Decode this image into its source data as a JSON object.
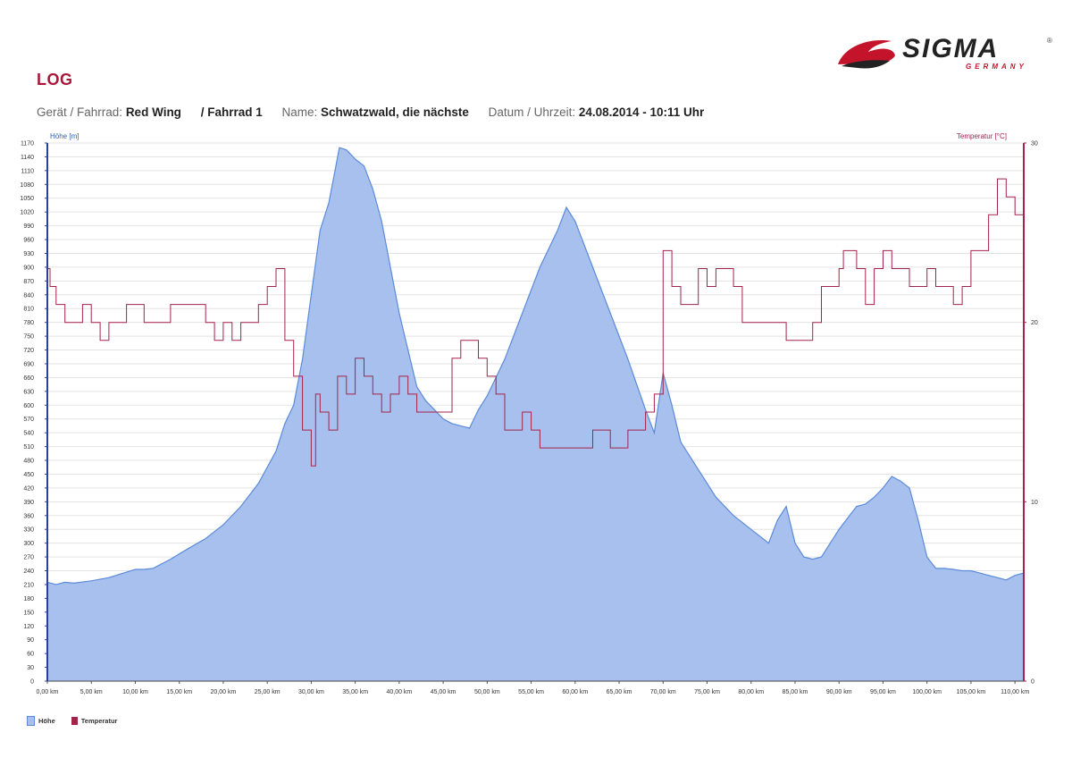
{
  "logo": {
    "text": "SIGMA",
    "sub": "GERMANY",
    "mark": "®"
  },
  "title": "LOG",
  "header": {
    "device_label": "Gerät / Fahrrad:",
    "device_value": "Red Wing",
    "bike_value": "/ Fahrrad 1",
    "name_label": "Name:",
    "name_value": "Schwatzwald, die nächste",
    "date_label": "Datum / Uhrzeit:",
    "date_value": "24.08.2014 - 10:11 Uhr"
  },
  "colors": {
    "hoehe": "#5b8bd8",
    "hoehe_fill": "#a8c0ee",
    "temperatur": "#a3234a",
    "brand": "#a8183a"
  },
  "chart_data": {
    "type": "area",
    "ylabel": "Höhe [m]",
    "y2label": "Temperatur [°C]",
    "xlim": [
      0,
      111
    ],
    "ylim": [
      0,
      1170
    ],
    "y2lim": [
      0,
      30
    ],
    "xticks": [
      "0,00 km",
      "5,00 km",
      "10,00 km",
      "15,00 km",
      "20,00 km",
      "25,00 km",
      "30,00 km",
      "35,00 km",
      "40,00 km",
      "45,00 km",
      "50,00 km",
      "55,00 km",
      "60,00 km",
      "65,00 km",
      "70,00 km",
      "75,00 km",
      "80,00 km",
      "85,00 km",
      "90,00 km",
      "95,00 km",
      "100,00 km",
      "105,00 km",
      "110,00 km"
    ],
    "yticks": [
      "0",
      "30",
      "60",
      "90",
      "120",
      "150",
      "180",
      "210",
      "240",
      "270",
      "300",
      "330",
      "360",
      "390",
      "420",
      "450",
      "480",
      "510",
      "540",
      "570",
      "600",
      "630",
      "660",
      "690",
      "720",
      "750",
      "780",
      "810",
      "840",
      "870",
      "900",
      "930",
      "960",
      "990",
      "1020",
      "1050",
      "1080",
      "1110",
      "1140",
      "1170"
    ],
    "y2ticks": [
      "0",
      "10",
      "20",
      "30"
    ],
    "legend": [
      {
        "name": "Höhe"
      },
      {
        "name": "Temperatur"
      }
    ],
    "series": [
      {
        "name": "Höhe",
        "axis": "left",
        "points": [
          [
            0,
            215
          ],
          [
            1,
            210
          ],
          [
            2,
            215
          ],
          [
            3,
            213
          ],
          [
            5,
            218
          ],
          [
            7,
            225
          ],
          [
            9,
            237
          ],
          [
            10,
            243
          ],
          [
            11,
            243
          ],
          [
            12,
            245
          ],
          [
            14,
            265
          ],
          [
            16,
            288
          ],
          [
            18,
            310
          ],
          [
            20,
            340
          ],
          [
            22,
            380
          ],
          [
            24,
            430
          ],
          [
            26,
            500
          ],
          [
            27,
            560
          ],
          [
            28,
            600
          ],
          [
            29,
            700
          ],
          [
            30,
            840
          ],
          [
            31,
            980
          ],
          [
            32,
            1040
          ],
          [
            32.8,
            1120
          ],
          [
            33.2,
            1160
          ],
          [
            34,
            1155
          ],
          [
            35,
            1135
          ],
          [
            36,
            1120
          ],
          [
            37,
            1070
          ],
          [
            38,
            1000
          ],
          [
            39,
            900
          ],
          [
            40,
            800
          ],
          [
            41,
            720
          ],
          [
            42,
            640
          ],
          [
            43,
            610
          ],
          [
            44,
            590
          ],
          [
            45,
            570
          ],
          [
            46,
            560
          ],
          [
            47,
            555
          ],
          [
            48,
            550
          ],
          [
            49,
            590
          ],
          [
            50,
            620
          ],
          [
            52,
            700
          ],
          [
            54,
            800
          ],
          [
            56,
            900
          ],
          [
            58,
            980
          ],
          [
            59,
            1030
          ],
          [
            60,
            1000
          ],
          [
            62,
            900
          ],
          [
            64,
            800
          ],
          [
            66,
            700
          ],
          [
            68,
            590
          ],
          [
            69,
            540
          ],
          [
            70,
            670
          ],
          [
            71,
            600
          ],
          [
            72,
            520
          ],
          [
            74,
            460
          ],
          [
            76,
            400
          ],
          [
            78,
            360
          ],
          [
            80,
            330
          ],
          [
            82,
            300
          ],
          [
            83,
            350
          ],
          [
            84,
            380
          ],
          [
            85,
            300
          ],
          [
            86,
            270
          ],
          [
            87,
            265
          ],
          [
            88,
            270
          ],
          [
            89,
            300
          ],
          [
            90,
            330
          ],
          [
            91,
            355
          ],
          [
            92,
            380
          ],
          [
            93,
            385
          ],
          [
            94,
            400
          ],
          [
            95,
            420
          ],
          [
            96,
            445
          ],
          [
            97,
            435
          ],
          [
            98,
            420
          ],
          [
            99,
            350
          ],
          [
            100,
            270
          ],
          [
            101,
            245
          ],
          [
            102,
            245
          ],
          [
            103,
            243
          ],
          [
            104,
            240
          ],
          [
            105,
            240
          ],
          [
            106,
            235
          ],
          [
            107,
            230
          ],
          [
            108,
            225
          ],
          [
            109,
            220
          ],
          [
            110,
            230
          ],
          [
            111,
            235
          ]
        ]
      },
      {
        "name": "Temperatur",
        "axis": "right",
        "points": [
          [
            0,
            23
          ],
          [
            0.3,
            22
          ],
          [
            1,
            21
          ],
          [
            2,
            20
          ],
          [
            4,
            21
          ],
          [
            5,
            20
          ],
          [
            6,
            19
          ],
          [
            7,
            20
          ],
          [
            9,
            21
          ],
          [
            11,
            20
          ],
          [
            14,
            21
          ],
          [
            18,
            20
          ],
          [
            19,
            19
          ],
          [
            20,
            20
          ],
          [
            21,
            19
          ],
          [
            22,
            20
          ],
          [
            24,
            21
          ],
          [
            25,
            22
          ],
          [
            26,
            23
          ],
          [
            27,
            19
          ],
          [
            28,
            17
          ],
          [
            29,
            14
          ],
          [
            30,
            12
          ],
          [
            30.5,
            16
          ],
          [
            31,
            15
          ],
          [
            32,
            14
          ],
          [
            33,
            17
          ],
          [
            34,
            16
          ],
          [
            35,
            18
          ],
          [
            36,
            17
          ],
          [
            37,
            16
          ],
          [
            38,
            15
          ],
          [
            39,
            16
          ],
          [
            40,
            17
          ],
          [
            41,
            16
          ],
          [
            42,
            15
          ],
          [
            46,
            18
          ],
          [
            47,
            19
          ],
          [
            49,
            18
          ],
          [
            50,
            17
          ],
          [
            51,
            16
          ],
          [
            52,
            14
          ],
          [
            54,
            15
          ],
          [
            55,
            14
          ],
          [
            56,
            13
          ],
          [
            62,
            14
          ],
          [
            64,
            13
          ],
          [
            66,
            14
          ],
          [
            68,
            15
          ],
          [
            69,
            16
          ],
          [
            70,
            24
          ],
          [
            71,
            22
          ],
          [
            72,
            21
          ],
          [
            74,
            23
          ],
          [
            75,
            22
          ],
          [
            76,
            23
          ],
          [
            78,
            22
          ],
          [
            79,
            20
          ],
          [
            84,
            19
          ],
          [
            87,
            20
          ],
          [
            88,
            22
          ],
          [
            90,
            23
          ],
          [
            90.5,
            24
          ],
          [
            92,
            23
          ],
          [
            93,
            21
          ],
          [
            94,
            23
          ],
          [
            95,
            24
          ],
          [
            96,
            23
          ],
          [
            98,
            22
          ],
          [
            100,
            23
          ],
          [
            101,
            22
          ],
          [
            103,
            21
          ],
          [
            104,
            22
          ],
          [
            105,
            24
          ],
          [
            107,
            26
          ],
          [
            108,
            28
          ],
          [
            109,
            27
          ],
          [
            110,
            26
          ],
          [
            111,
            26
          ]
        ]
      }
    ]
  }
}
